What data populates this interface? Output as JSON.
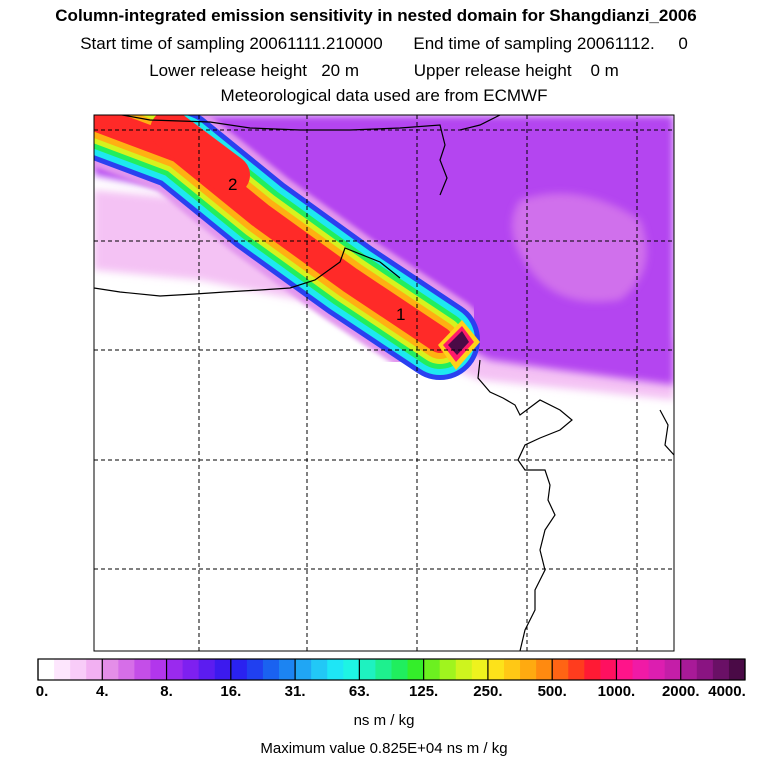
{
  "title": {
    "main": "Column-integrated emission sensitivity in nested domain for Shangdianzi_2006",
    "start_label": "Start time of sampling",
    "start_value": "20061111.210000",
    "end_label": "End time of sampling",
    "end_value": "20061112.     0",
    "lower_label": "Lower release height",
    "lower_value": "20 m",
    "upper_label": "Upper release height",
    "upper_value": "0 m",
    "met": "Meteorological data used are from ECMWF"
  },
  "map": {
    "labels": [
      "2",
      "1"
    ]
  },
  "colorbar": {
    "tick_labels": [
      "0.",
      "4.",
      "8.",
      "16.",
      "31.",
      "63.",
      "125.",
      "250.",
      "500.",
      "1000.",
      "2000.",
      "4000."
    ],
    "colors": [
      "#ffffff",
      "#fde6fd",
      "#f8ccf8",
      "#f2b0f2",
      "#e48ee8",
      "#d66ee8",
      "#c44ee8",
      "#b236ec",
      "#9a2aee",
      "#7e20f0",
      "#5c1cf0",
      "#3c1aee",
      "#2a22f0",
      "#2040f0",
      "#1a62f0",
      "#1c84f2",
      "#20a6f4",
      "#22c8f6",
      "#1ee6f6",
      "#1ef4e4",
      "#1ef2c0",
      "#1ef08e",
      "#20ee5e",
      "#34ee2a",
      "#6cf020",
      "#a0f41e",
      "#cef41e",
      "#eef21e",
      "#fde21a",
      "#ffc815",
      "#ffaa10",
      "#ff8a10",
      "#ff6414",
      "#ff3c1e",
      "#ff1a34",
      "#ff1060",
      "#ff148a",
      "#f01aa6",
      "#dc1eb0",
      "#c41ea8",
      "#a81a98",
      "#8a1482",
      "#6a1066",
      "#4a0a46"
    ],
    "unit": "ns m / kg"
  },
  "max_value": "Maximum value  0.825E+04 ns m / kg",
  "colors": {
    "plume_core": "#ff2828",
    "background_purple": "#b044f0",
    "outline": "#000000"
  }
}
